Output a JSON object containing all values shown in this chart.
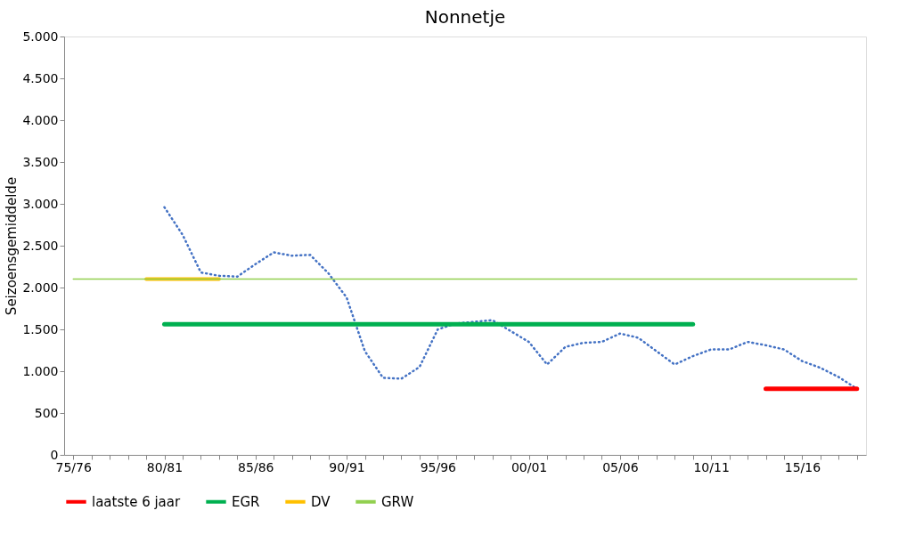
{
  "chart_data": {
    "type": "line",
    "title": "Nonnetje",
    "ylabel": "Seizoensgemiddelde",
    "categories": [
      "75/76",
      null,
      null,
      null,
      null,
      "80/81",
      null,
      null,
      null,
      null,
      "85/86",
      null,
      null,
      null,
      null,
      "90/91",
      null,
      null,
      null,
      null,
      "95/96",
      null,
      null,
      null,
      null,
      "00/01",
      null,
      null,
      null,
      null,
      "05/06",
      null,
      null,
      null,
      null,
      "10/11",
      null,
      null,
      null,
      null,
      "15/16",
      null,
      null,
      null
    ],
    "ylim": [
      0,
      5000
    ],
    "yticks": [
      0,
      500,
      {
        "value": 1000,
        "label": "1.000"
      },
      {
        "value": 1500,
        "label": "1.500"
      },
      {
        "value": 2000,
        "label": "2.000"
      },
      {
        "value": 2500,
        "label": "2.500"
      },
      {
        "value": 3000,
        "label": "3.000"
      },
      {
        "value": 3500,
        "label": "3.500"
      },
      {
        "value": 4000,
        "label": "4.000"
      },
      {
        "value": 4500,
        "label": "4.500"
      },
      {
        "value": 5000,
        "label": "5.000"
      }
    ],
    "grid": false,
    "legend": "bottom",
    "series": [
      {
        "line_style": "dotted",
        "color": "#4472c4",
        "values": [
          null,
          null,
          null,
          null,
          null,
          2960,
          2630,
          2180,
          2140,
          2130,
          2280,
          2420,
          2380,
          2390,
          2170,
          1880,
          1240,
          920,
          910,
          1050,
          1500,
          1570,
          1590,
          1610,
          1480,
          1350,
          1080,
          1290,
          1340,
          1350,
          1450,
          1400,
          1240,
          1080,
          1180,
          1260,
          1260,
          1350,
          1310,
          1260,
          1120,
          1040,
          930,
          790
        ]
      },
      {
        "name": "laatste 6 jaar",
        "color": "#ff0000",
        "values": [
          null,
          null,
          null,
          null,
          null,
          null,
          null,
          null,
          null,
          null,
          null,
          null,
          null,
          null,
          null,
          null,
          null,
          null,
          null,
          null,
          null,
          null,
          null,
          null,
          null,
          null,
          null,
          null,
          null,
          null,
          null,
          null,
          null,
          null,
          null,
          null,
          null,
          null,
          790,
          790,
          790,
          790,
          790,
          790
        ]
      },
      {
        "name": "EGR",
        "color": "#00b050",
        "values": [
          null,
          null,
          null,
          null,
          null,
          1560,
          1560,
          1560,
          1560,
          1560,
          1560,
          1560,
          1560,
          1560,
          1560,
          1560,
          1560,
          1560,
          1560,
          1560,
          1560,
          1560,
          1560,
          1560,
          1560,
          1560,
          1560,
          1560,
          1560,
          1560,
          1560,
          1560,
          1560,
          1560,
          1560,
          null,
          null,
          null,
          null,
          null,
          null,
          null,
          null,
          null
        ]
      },
      {
        "name": "DV",
        "color": "#ffc000",
        "values": [
          null,
          null,
          null,
          null,
          2100,
          2100,
          2100,
          2100,
          2100,
          null,
          null,
          null,
          null,
          null,
          null,
          null,
          null,
          null,
          null,
          null,
          null,
          null,
          null,
          null,
          null,
          null,
          null,
          null,
          null,
          null,
          null,
          null,
          null,
          null,
          null,
          null,
          null,
          null,
          null,
          null,
          null,
          null,
          null,
          null
        ]
      },
      {
        "name": "GRW",
        "color": "#92d050",
        "values": [
          2100,
          2100,
          2100,
          2100,
          2100,
          2100,
          2100,
          2100,
          2100,
          2100,
          2100,
          2100,
          2100,
          2100,
          2100,
          2100,
          2100,
          2100,
          2100,
          2100,
          2100,
          2100,
          2100,
          2100,
          2100,
          2100,
          2100,
          2100,
          2100,
          2100,
          2100,
          2100,
          2100,
          2100,
          2100,
          2100,
          2100,
          2100,
          2100,
          2100,
          2100,
          2100,
          2100,
          2100
        ]
      }
    ]
  }
}
